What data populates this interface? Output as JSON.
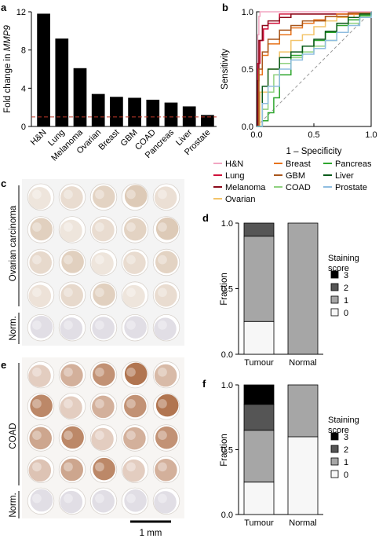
{
  "colors": {
    "bar": "#000000",
    "threshold_line": "#c0392b",
    "roc": {
      "H&N": "#f2a6c2",
      "Lung": "#d0103a",
      "Melanoma": "#8b0a1a",
      "Ovarian": "#f3c46a",
      "Breast": "#e8731b",
      "GBM": "#a8561b",
      "COAD": "#8fd17f",
      "Pancreas": "#2ea62e",
      "Liver": "#0a5a1a",
      "Prostate": "#8fbde0"
    },
    "stain": {
      "3": "#000000",
      "2": "#555555",
      "1": "#a6a6a6",
      "0": "#f7f7f7"
    },
    "tissue_ovarian": "#c8a98a",
    "tissue_coad": "#a25a2e"
  },
  "panel_a": {
    "label": "a",
    "chart_data": {
      "type": "bar",
      "categories": [
        "H&N",
        "Lung",
        "Melanoma",
        "Ovarian",
        "Breast",
        "GBM",
        "COAD",
        "Pancreas",
        "Liver",
        "Prostate"
      ],
      "values": [
        11.8,
        9.2,
        6.1,
        3.4,
        3.1,
        3.0,
        2.8,
        2.5,
        2.1,
        1.2
      ],
      "ylabel": "Fold change in MMP9",
      "ylabel_prefix": "Fold change in ",
      "ylabel_gene": "MMP9",
      "ylim": [
        0,
        12
      ],
      "yticks": [
        0,
        4,
        8,
        12
      ],
      "threshold": 1
    }
  },
  "panel_b": {
    "label": "b",
    "chart_data": {
      "type": "line",
      "xlabel": "1 – Specificity",
      "ylabel": "Sensitivity",
      "xlim": [
        0,
        1
      ],
      "ylim": [
        0,
        1
      ],
      "xticks": [
        "0.0",
        "0.5",
        "1.0"
      ],
      "yticks": [
        "0.0",
        "0.5",
        "1.0"
      ],
      "diagonal": true,
      "series": [
        {
          "name": "H&N",
          "x": [
            0,
            0.01,
            0.02,
            0.03,
            1
          ],
          "y": [
            0,
            0.8,
            0.96,
            1,
            1
          ]
        },
        {
          "name": "Lung",
          "x": [
            0,
            0.01,
            0.03,
            0.06,
            0.1,
            0.2,
            1
          ],
          "y": [
            0,
            0.55,
            0.75,
            0.85,
            0.9,
            0.98,
            1
          ]
        },
        {
          "name": "Melanoma",
          "x": [
            0,
            0.01,
            0.02,
            0.05,
            0.1,
            0.2,
            0.3,
            1
          ],
          "y": [
            0,
            0.4,
            0.75,
            0.88,
            0.92,
            0.95,
            0.98,
            1
          ]
        },
        {
          "name": "Ovarian",
          "x": [
            0,
            0.03,
            0.1,
            0.2,
            0.3,
            0.4,
            0.5,
            0.6,
            0.7,
            0.85,
            1
          ],
          "y": [
            0,
            0.3,
            0.5,
            0.65,
            0.75,
            0.8,
            0.87,
            0.92,
            0.95,
            0.98,
            1
          ]
        },
        {
          "name": "Breast",
          "x": [
            0,
            0.02,
            0.05,
            0.1,
            0.2,
            0.3,
            0.4,
            0.5,
            0.6,
            0.7,
            1
          ],
          "y": [
            0,
            0.45,
            0.62,
            0.72,
            0.8,
            0.86,
            0.9,
            0.93,
            0.96,
            0.98,
            1
          ]
        },
        {
          "name": "GBM",
          "x": [
            0,
            0.02,
            0.05,
            0.1,
            0.2,
            0.3,
            0.4,
            0.6,
            0.8,
            1
          ],
          "y": [
            0,
            0.5,
            0.65,
            0.76,
            0.84,
            0.88,
            0.92,
            0.96,
            0.99,
            1
          ]
        },
        {
          "name": "COAD",
          "x": [
            0,
            0.05,
            0.1,
            0.15,
            0.2,
            0.3,
            0.4,
            0.5,
            0.6,
            0.7,
            0.8,
            0.9,
            1
          ],
          "y": [
            0,
            0.15,
            0.3,
            0.45,
            0.55,
            0.6,
            0.65,
            0.7,
            0.75,
            0.82,
            0.9,
            0.96,
            1
          ]
        },
        {
          "name": "Pancreas",
          "x": [
            0,
            0.05,
            0.1,
            0.15,
            0.2,
            0.3,
            0.4,
            0.5,
            0.6,
            0.7,
            0.8,
            0.9,
            1
          ],
          "y": [
            0,
            0.05,
            0.12,
            0.25,
            0.45,
            0.62,
            0.7,
            0.75,
            0.82,
            0.88,
            0.93,
            0.97,
            1
          ]
        },
        {
          "name": "Liver",
          "x": [
            0,
            0.05,
            0.1,
            0.2,
            0.3,
            0.4,
            0.5,
            0.6,
            0.7,
            0.8,
            0.9,
            1
          ],
          "y": [
            0,
            0.35,
            0.5,
            0.6,
            0.65,
            0.7,
            0.76,
            0.83,
            0.9,
            0.95,
            0.98,
            1
          ]
        },
        {
          "name": "Prostate",
          "x": [
            0,
            0.05,
            0.1,
            0.2,
            0.3,
            0.4,
            0.5,
            0.6,
            0.7,
            0.8,
            0.9,
            1
          ],
          "y": [
            0,
            0.2,
            0.35,
            0.5,
            0.58,
            0.63,
            0.68,
            0.75,
            0.82,
            0.88,
            0.95,
            1
          ]
        }
      ]
    }
  },
  "legend_b": {
    "columns": [
      [
        "H&N",
        "Lung",
        "Melanoma",
        "Ovarian"
      ],
      [
        "Breast",
        "GBM",
        "COAD"
      ],
      [
        "Pancreas",
        "Liver",
        "Prostate"
      ]
    ]
  },
  "panel_c": {
    "label": "c",
    "group_label": "Ovarian carcinoma",
    "norm_label": "Norm.",
    "tumour_rows": 4,
    "norm_rows": 1,
    "cols": 5
  },
  "panel_e": {
    "label": "e",
    "group_label": "COAD",
    "norm_label": "Norm.",
    "tumour_rows": 4,
    "norm_rows": 1,
    "cols": 5,
    "scale_bar_label": "1 mm"
  },
  "panel_d": {
    "label": "d",
    "chart_data": {
      "type": "bar",
      "stacked": true,
      "categories": [
        "Tumour",
        "Normal"
      ],
      "ylabel": "Fraction",
      "ylim": [
        0,
        1
      ],
      "yticks": [
        "0.0",
        "0.5",
        "1.0"
      ],
      "series": [
        {
          "name": "0",
          "values": [
            0.25,
            0.0
          ]
        },
        {
          "name": "1",
          "values": [
            0.65,
            1.0
          ]
        },
        {
          "name": "2",
          "values": [
            0.1,
            0.0
          ]
        },
        {
          "name": "3",
          "values": [
            0.0,
            0.0
          ]
        }
      ]
    },
    "legend_title": [
      "Staining",
      "score"
    ],
    "legend_items": [
      "3",
      "2",
      "1",
      "0"
    ]
  },
  "panel_f": {
    "label": "f",
    "chart_data": {
      "type": "bar",
      "stacked": true,
      "categories": [
        "Tumour",
        "Normal"
      ],
      "ylabel": "Fraction",
      "ylim": [
        0,
        1
      ],
      "yticks": [
        "0.0",
        "0.5",
        "1.0"
      ],
      "series": [
        {
          "name": "0",
          "values": [
            0.25,
            0.6
          ]
        },
        {
          "name": "1",
          "values": [
            0.4,
            0.4
          ]
        },
        {
          "name": "2",
          "values": [
            0.2,
            0.0
          ]
        },
        {
          "name": "3",
          "values": [
            0.15,
            0.0
          ]
        }
      ]
    },
    "legend_title": [
      "Staining",
      "score"
    ],
    "legend_items": [
      "3",
      "2",
      "1",
      "0"
    ]
  }
}
